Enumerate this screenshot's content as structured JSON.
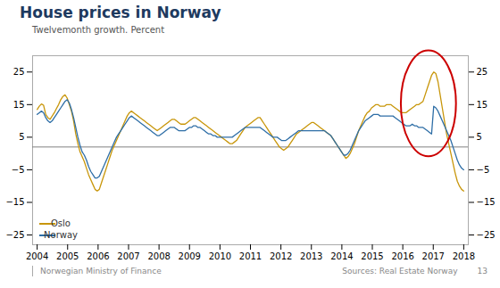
{
  "chart_data": {
    "type": "line",
    "title": "House prices in Norway",
    "subtitle": "Twelvemonth growth. Percent",
    "background": "#ffffff",
    "title_color": "#1e3a5f",
    "x": [
      2004,
      2004.0704,
      2004.1407,
      2004.2111,
      2004.2814,
      2004.3518,
      2004.4221,
      2004.4925,
      2004.5628,
      2004.6332,
      2004.7035,
      2004.7739,
      2004.8442,
      2004.9146,
      2004.9849,
      2005.0553,
      2005.1256,
      2005.196,
      2005.2663,
      2005.3367,
      2005.407,
      2005.4774,
      2005.5477,
      2005.6181,
      2005.6884,
      2005.7588,
      2005.8291,
      2005.8995,
      2005.9698,
      2006.0402,
      2006.1106,
      2006.1809,
      2006.2513,
      2006.3216,
      2006.392,
      2006.4623,
      2006.5327,
      2006.603,
      2006.6734,
      2006.7437,
      2006.8141,
      2006.8844,
      2006.9548,
      2007.0251,
      2007.0955,
      2007.1658,
      2007.2362,
      2007.3065,
      2007.3769,
      2007.4472,
      2007.5176,
      2007.5879,
      2007.6583,
      2007.7286,
      2007.799,
      2007.8693,
      2007.9397,
      2008.0101,
      2008.0804,
      2008.1508,
      2008.2211,
      2008.2915,
      2008.3618,
      2008.4322,
      2008.5025,
      2008.5729,
      2008.6432,
      2008.7136,
      2008.7839,
      2008.8543,
      2008.9246,
      2008.995,
      2009.0653,
      2009.1357,
      2009.206,
      2009.2764,
      2009.3467,
      2009.4171,
      2009.4874,
      2009.5578,
      2009.6281,
      2009.6985,
      2009.7688,
      2009.8392,
      2009.9095,
      2009.9799,
      2010.0503,
      2010.1206,
      2010.191,
      2010.2613,
      2010.3317,
      2010.402,
      2010.4724,
      2010.5427,
      2010.6131,
      2010.6834,
      2010.7538,
      2010.8241,
      2010.8945,
      2010.9648,
      2011.0352,
      2011.1055,
      2011.1759,
      2011.2462,
      2011.3166,
      2011.3869,
      2011.4573,
      2011.5276,
      2011.598,
      2011.6683,
      2011.7387,
      2011.809,
      2011.8794,
      2011.9497,
      2012.0201,
      2012.0905,
      2012.1608,
      2012.2312,
      2012.3015,
      2012.3719,
      2012.4422,
      2012.5126,
      2012.5829,
      2012.6533,
      2012.7236,
      2012.794,
      2012.8643,
      2012.9347,
      2013.005,
      2013.0754,
      2013.1457,
      2013.2161,
      2013.2864,
      2013.3568,
      2013.4271,
      2013.4975,
      2013.5678,
      2013.6382,
      2013.7085,
      2013.7789,
      2013.8492,
      2013.9196,
      2013.9899,
      2014.0603,
      2014.1307,
      2014.201,
      2014.2714,
      2014.3417,
      2014.4121,
      2014.4824,
      2014.5528,
      2014.6231,
      2014.6935,
      2014.7638,
      2014.8342,
      2014.9045,
      2014.9749,
      2015.0452,
      2015.1156,
      2015.1859,
      2015.2563,
      2015.3266,
      2015.397,
      2015.4673,
      2015.5377,
      2015.608,
      2015.6784,
      2015.7487,
      2015.8191,
      2015.8894,
      2015.9598,
      2016.0302,
      2016.1005,
      2016.1709,
      2016.2412,
      2016.3116,
      2016.3819,
      2016.4523,
      2016.5226,
      2016.593,
      2016.6633,
      2016.7337,
      2016.804,
      2016.8744,
      2016.9447,
      2017.0151,
      2017.0854,
      2017.1558,
      2017.2261,
      2017.2965,
      2017.3668,
      2017.4372,
      2017.5075,
      2017.5779,
      2017.6482,
      2017.7186,
      2017.7889,
      2017.8593,
      2017.9296,
      2018
    ],
    "xlim": [
      2003.85,
      2018.15
    ],
    "xticks": [
      2004,
      2005,
      2006,
      2007,
      2008,
      2009,
      2010,
      2011,
      2012,
      2013,
      2014,
      2015,
      2016,
      2017,
      2018
    ],
    "ylim": [
      -28,
      30
    ],
    "yticks": [
      -25,
      -15,
      -5,
      5,
      15,
      25
    ],
    "series": [
      {
        "name": "Oslo",
        "color": "#c8960a",
        "values": [
          13.5,
          14.5,
          15.2,
          14.8,
          12.0,
          11.0,
          10.5,
          11.5,
          12.5,
          13.8,
          15.0,
          16.5,
          17.5,
          18.0,
          17.0,
          15.0,
          13.0,
          10.0,
          6.0,
          3.0,
          0.5,
          -1.0,
          -2.5,
          -4.5,
          -6.5,
          -8.0,
          -9.5,
          -11.0,
          -11.5,
          -11.0,
          -9.0,
          -7.0,
          -5.0,
          -3.0,
          -1.0,
          1.0,
          2.5,
          4.0,
          5.5,
          7.0,
          8.5,
          10.0,
          11.5,
          12.5,
          13.0,
          12.5,
          12.0,
          11.5,
          11.0,
          10.5,
          10.0,
          9.5,
          9.0,
          8.5,
          8.0,
          7.5,
          7.0,
          7.5,
          8.0,
          8.5,
          9.0,
          9.5,
          10.0,
          10.5,
          10.5,
          10.0,
          9.5,
          9.0,
          9.0,
          9.0,
          9.5,
          10.0,
          10.5,
          11.0,
          11.0,
          10.5,
          10.0,
          9.5,
          9.0,
          8.5,
          8.0,
          7.5,
          7.0,
          6.5,
          6.0,
          5.5,
          5.0,
          4.5,
          4.0,
          3.5,
          3.0,
          3.0,
          3.5,
          4.0,
          5.0,
          6.0,
          7.0,
          8.0,
          8.5,
          9.0,
          9.5,
          10.0,
          10.5,
          11.0,
          11.0,
          10.0,
          9.0,
          8.0,
          7.0,
          6.0,
          5.0,
          4.0,
          3.0,
          2.0,
          1.5,
          1.0,
          1.5,
          2.0,
          3.0,
          4.0,
          5.0,
          6.0,
          6.5,
          7.0,
          7.5,
          8.0,
          8.5,
          9.0,
          9.5,
          9.5,
          9.0,
          8.5,
          8.0,
          7.5,
          7.0,
          6.5,
          6.0,
          5.5,
          4.5,
          3.5,
          2.5,
          1.5,
          0.5,
          -0.5,
          -1.5,
          -1.0,
          0.0,
          1.5,
          3.0,
          5.0,
          7.0,
          8.5,
          10.0,
          11.5,
          12.5,
          13.0,
          14.0,
          14.5,
          15.0,
          15.0,
          14.5,
          14.5,
          14.5,
          15.0,
          15.0,
          15.0,
          14.5,
          14.0,
          13.5,
          13.0,
          12.5,
          12.5,
          12.5,
          13.0,
          13.5,
          14.0,
          14.5,
          15.0,
          15.0,
          15.5,
          16.0,
          18.0,
          20.0,
          22.0,
          24.0,
          25.0,
          24.5,
          22.0,
          18.0,
          14.0,
          10.0,
          6.0,
          3.0,
          0.0,
          -3.0,
          -6.0,
          -8.5,
          -10.0,
          -11.0,
          -11.5
        ]
      },
      {
        "name": "Norway",
        "color": "#2e6ea6",
        "values": [
          12.0,
          12.5,
          13.0,
          12.5,
          11.0,
          10.0,
          9.5,
          10.0,
          11.0,
          12.0,
          13.0,
          14.0,
          15.0,
          16.0,
          16.5,
          15.5,
          13.5,
          11.0,
          8.0,
          5.0,
          2.5,
          0.5,
          -0.5,
          -2.0,
          -4.0,
          -5.5,
          -6.5,
          -7.5,
          -7.5,
          -7.0,
          -5.5,
          -4.0,
          -2.5,
          -1.0,
          0.5,
          2.0,
          3.5,
          5.0,
          6.0,
          7.0,
          8.0,
          9.0,
          10.0,
          11.0,
          11.5,
          11.0,
          10.5,
          10.0,
          9.5,
          9.0,
          8.5,
          8.0,
          7.5,
          7.0,
          6.5,
          6.0,
          5.5,
          5.5,
          6.0,
          6.5,
          7.0,
          7.5,
          8.0,
          8.0,
          8.0,
          7.5,
          7.0,
          7.0,
          7.0,
          7.0,
          7.5,
          8.0,
          8.0,
          8.5,
          8.5,
          8.0,
          8.0,
          7.5,
          7.0,
          6.5,
          6.0,
          6.0,
          5.5,
          5.5,
          5.0,
          5.0,
          5.0,
          5.0,
          5.0,
          5.0,
          5.0,
          5.0,
          5.5,
          6.0,
          6.5,
          7.0,
          7.5,
          8.0,
          8.0,
          8.0,
          8.0,
          8.0,
          8.0,
          8.0,
          8.0,
          7.5,
          7.0,
          6.5,
          6.0,
          5.5,
          5.0,
          5.0,
          5.0,
          4.5,
          4.0,
          4.0,
          4.0,
          4.5,
          5.0,
          5.5,
          6.0,
          6.5,
          7.0,
          7.0,
          7.0,
          7.0,
          7.0,
          7.0,
          7.0,
          7.0,
          7.0,
          7.0,
          7.0,
          7.0,
          7.0,
          6.5,
          6.0,
          5.5,
          4.5,
          3.5,
          2.5,
          1.5,
          0.5,
          -0.5,
          -0.5,
          0.0,
          1.0,
          2.5,
          4.0,
          5.5,
          7.0,
          8.0,
          9.0,
          10.0,
          10.5,
          11.0,
          11.5,
          12.0,
          12.0,
          12.0,
          11.5,
          11.5,
          11.5,
          11.5,
          11.5,
          11.5,
          11.5,
          11.0,
          10.5,
          10.0,
          9.5,
          9.0,
          8.5,
          8.5,
          8.5,
          9.0,
          8.5,
          8.5,
          8.0,
          8.0,
          8.0,
          7.5,
          7.0,
          6.5,
          6.0,
          14.5,
          14.0,
          13.0,
          11.5,
          10.0,
          8.5,
          7.0,
          5.5,
          4.0,
          2.0,
          0.0,
          -2.0,
          -3.5,
          -4.5,
          -5.0
        ]
      }
    ],
    "reference_lines": [
      {
        "y": 2.0,
        "color": "#808080"
      }
    ],
    "annotations": [
      {
        "shape": "ellipse",
        "x": [
          2015.95,
          2017.76
        ],
        "y": [
          -1,
          31.5
        ],
        "color": "#cc0000"
      }
    ],
    "legend": "lower left",
    "grid": false,
    "footer_left": "Norwegian Ministry of Finance",
    "footer_right": "Sources: Real Estate Norway",
    "page_number": "13"
  }
}
